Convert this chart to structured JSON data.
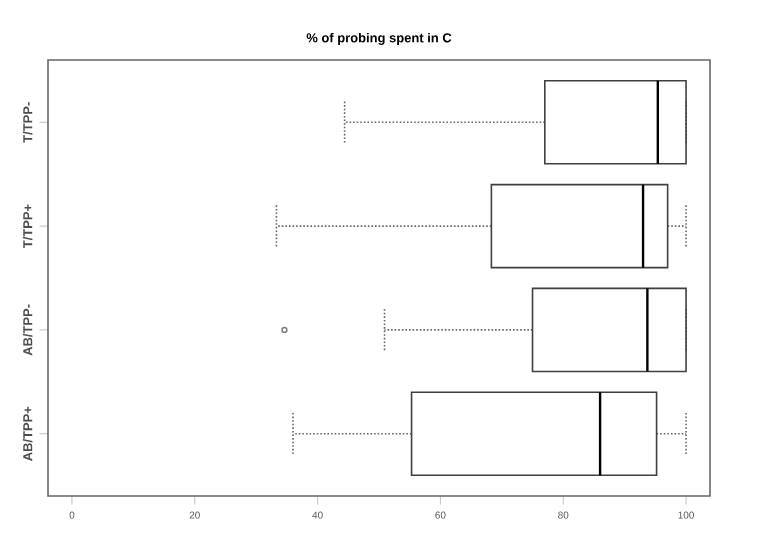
{
  "chart_data": {
    "type": "box",
    "orientation": "horizontal",
    "title": "% of probing spent in C",
    "categories": [
      "T/TPP-",
      "T/TPP+",
      "AB/TPP-",
      "AB/TPP+"
    ],
    "boxes": [
      {
        "low": 44.4,
        "q1": 77,
        "median": 95.4,
        "q3": 100,
        "high": 100
      },
      {
        "low": 33.3,
        "q1": 68.3,
        "median": 93,
        "q3": 97,
        "high": 100
      },
      {
        "low": 50.9,
        "q1": 75,
        "median": 93.7,
        "q3": 100,
        "high": 100,
        "outliers": [
          34.6
        ]
      },
      {
        "low": 36,
        "q1": 55.3,
        "median": 86,
        "q3": 95.2,
        "high": 100
      }
    ],
    "xlim": [
      -3.9,
      103.9
    ],
    "xticks": [
      0,
      20,
      40,
      60,
      80,
      100
    ],
    "marker": "circle",
    "line_style": "dotted"
  }
}
